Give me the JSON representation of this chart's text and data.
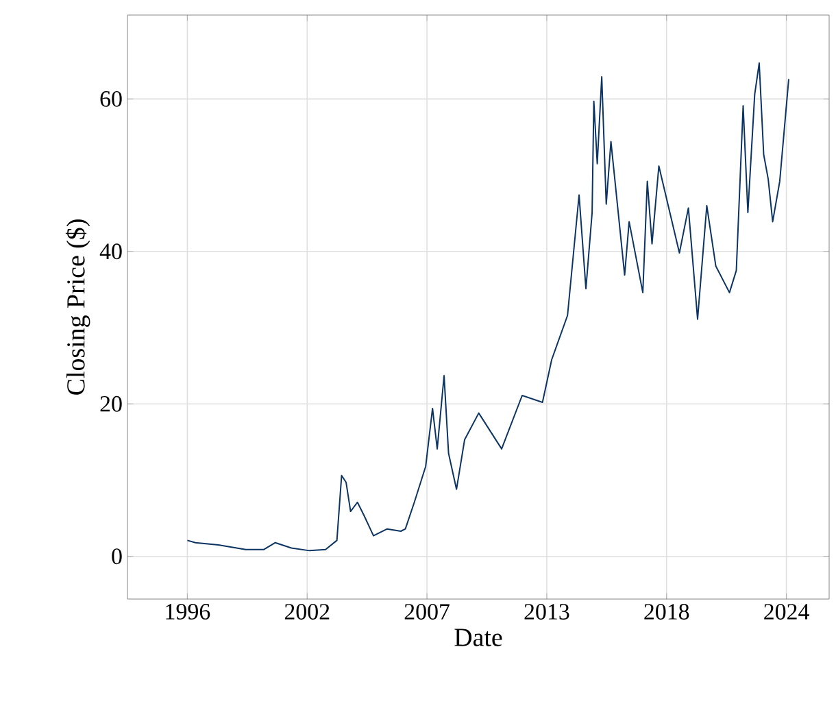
{
  "chart_data": {
    "type": "line",
    "xlabel": "Date",
    "ylabel": "Closing Price ($)",
    "grid": true,
    "xlim": [
      1993.2,
      2026.0
    ],
    "ylim": [
      -5.6,
      71
    ],
    "xticks": [
      {
        "value": 1996.0,
        "label": "1996"
      },
      {
        "value": 2001.6,
        "label": "2002"
      },
      {
        "value": 2007.2,
        "label": "2007"
      },
      {
        "value": 2012.8,
        "label": "2013"
      },
      {
        "value": 2018.4,
        "label": "2018"
      },
      {
        "value": 2024.0,
        "label": "2024"
      }
    ],
    "yticks": [
      0,
      20,
      40,
      60
    ],
    "series": [
      {
        "color": "#0b3463",
        "x": [
          1996.0,
          1996.38,
          1997.45,
          1998.73,
          1999.58,
          2000.11,
          2000.86,
          2001.71,
          2002.46,
          2002.99,
          2003.21,
          2003.42,
          2003.63,
          2003.95,
          2004.27,
          2004.7,
          2005.34,
          2005.98,
          2006.19,
          2006.61,
          2007.14,
          2007.46,
          2007.68,
          2008.0,
          2008.21,
          2008.58,
          2008.96,
          2009.62,
          2010.69,
          2011.65,
          2012.6,
          2013.03,
          2013.77,
          2014.31,
          2014.63,
          2014.92,
          2015.0,
          2015.16,
          2015.37,
          2015.58,
          2015.8,
          2016.44,
          2016.65,
          2017.29,
          2017.5,
          2017.72,
          2018.04,
          2018.46,
          2019.0,
          2019.42,
          2019.85,
          2020.28,
          2020.7,
          2021.34,
          2021.66,
          2021.98,
          2022.2,
          2022.52,
          2022.73,
          2022.94,
          2023.15,
          2023.36,
          2023.69,
          2024.11
        ],
        "values": [
          2.1,
          1.8,
          1.5,
          0.9,
          0.9,
          1.8,
          1.1,
          0.75,
          0.9,
          2.1,
          10.6,
          9.7,
          5.9,
          7.1,
          5.3,
          2.7,
          3.6,
          3.3,
          3.6,
          7.1,
          11.8,
          19.4,
          14.1,
          23.7,
          13.5,
          8.8,
          15.3,
          18.8,
          14.1,
          21.1,
          20.2,
          25.8,
          31.6,
          47.4,
          35.1,
          45.1,
          59.7,
          51.5,
          62.9,
          46.2,
          54.4,
          36.9,
          43.9,
          34.6,
          49.2,
          41.0,
          51.2,
          46.2,
          39.8,
          45.7,
          31.1,
          46.0,
          38.1,
          34.6,
          37.5,
          59.1,
          45.1,
          60.6,
          64.7,
          52.7,
          49.5,
          43.9,
          49.2,
          62.6
        ]
      }
    ]
  }
}
